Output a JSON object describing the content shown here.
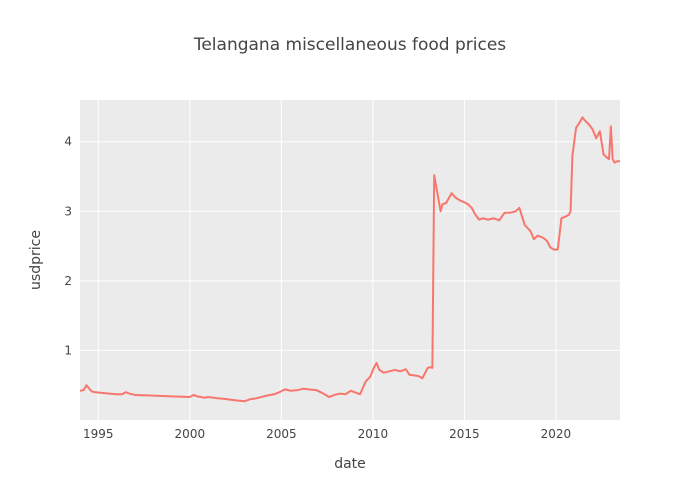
{
  "chart_data": {
    "type": "line",
    "title": "Telangana miscellaneous food prices",
    "xlabel": "date",
    "ylabel": "usdprice",
    "xlim": [
      1994.0,
      2023.5
    ],
    "ylim": [
      0.0,
      4.6
    ],
    "x_ticks": [
      1995,
      2000,
      2005,
      2010,
      2015,
      2020
    ],
    "y_ticks": [
      1,
      2,
      3,
      4
    ],
    "grid": true,
    "legend": "none",
    "background": "#ebebeb",
    "line_color": "#f8766d",
    "series": [
      {
        "x": [
          1994.0,
          1994.2,
          1994.35,
          1994.5,
          1994.65,
          1994.8,
          1995.2,
          1995.6,
          1996.0,
          1996.3,
          1996.5,
          1996.7,
          1997.0,
          1998.0,
          1999.0,
          2000.0,
          2000.2,
          2000.4,
          2000.6,
          2000.8,
          2001.0,
          2001.3,
          2001.6,
          2002.0,
          2002.3,
          2002.6,
          2003.0,
          2003.3,
          2003.6,
          2003.9,
          2004.2,
          2004.6,
          2004.9,
          2005.2,
          2005.5,
          2005.9,
          2006.2,
          2006.5,
          2006.9,
          2007.3,
          2007.6,
          2007.9,
          2008.2,
          2008.5,
          2008.8,
          2009.0,
          2009.3,
          2009.6,
          2009.85,
          2010.05,
          2010.2,
          2010.35,
          2010.6,
          2010.9,
          2011.2,
          2011.5,
          2011.8,
          2012.0,
          2012.3,
          2012.5,
          2012.7,
          2013.0,
          2013.15,
          2013.25,
          2013.35,
          2013.5,
          2013.7,
          2013.8,
          2014.0,
          2014.3,
          2014.5,
          2014.8,
          2015.0,
          2015.2,
          2015.4,
          2015.6,
          2015.8,
          2016.0,
          2016.3,
          2016.6,
          2016.9,
          2017.2,
          2017.5,
          2017.8,
          2018.0,
          2018.3,
          2018.6,
          2018.8,
          2019.0,
          2019.3,
          2019.5,
          2019.7,
          2019.9,
          2020.1,
          2020.3,
          2020.5,
          2020.7,
          2020.8,
          2020.9,
          2021.1,
          2021.3,
          2021.45,
          2021.6,
          2021.8,
          2022.0,
          2022.2,
          2022.4,
          2022.6,
          2022.75,
          2022.9,
          2023.0,
          2023.1,
          2023.2,
          2023.35,
          2023.5
        ],
        "y": [
          0.42,
          0.43,
          0.5,
          0.45,
          0.41,
          0.4,
          0.39,
          0.38,
          0.37,
          0.37,
          0.4,
          0.38,
          0.36,
          0.35,
          0.34,
          0.33,
          0.36,
          0.34,
          0.33,
          0.32,
          0.33,
          0.32,
          0.31,
          0.3,
          0.29,
          0.28,
          0.27,
          0.3,
          0.31,
          0.33,
          0.35,
          0.37,
          0.4,
          0.44,
          0.42,
          0.43,
          0.45,
          0.44,
          0.43,
          0.38,
          0.33,
          0.36,
          0.38,
          0.37,
          0.42,
          0.4,
          0.37,
          0.55,
          0.62,
          0.75,
          0.82,
          0.72,
          0.68,
          0.7,
          0.72,
          0.7,
          0.73,
          0.65,
          0.64,
          0.63,
          0.6,
          0.75,
          0.76,
          0.75,
          3.52,
          3.3,
          3.0,
          3.1,
          3.12,
          3.26,
          3.2,
          3.15,
          3.13,
          3.1,
          3.05,
          2.95,
          2.88,
          2.9,
          2.88,
          2.9,
          2.87,
          2.98,
          2.98,
          3.0,
          3.05,
          2.8,
          2.72,
          2.6,
          2.65,
          2.62,
          2.58,
          2.48,
          2.45,
          2.45,
          2.9,
          2.92,
          2.95,
          3.0,
          3.8,
          4.2,
          4.28,
          4.35,
          4.3,
          4.25,
          4.18,
          4.05,
          4.15,
          3.82,
          3.78,
          3.75,
          4.22,
          3.75,
          3.7,
          3.72,
          3.72
        ]
      }
    ]
  }
}
